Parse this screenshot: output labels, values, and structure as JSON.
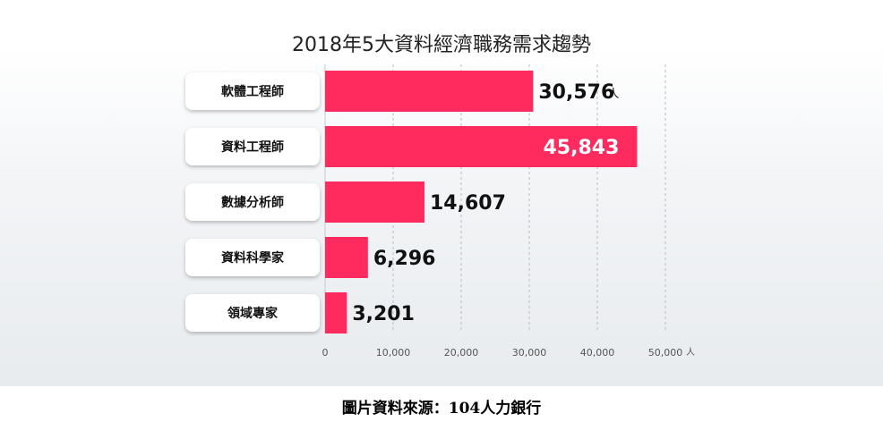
{
  "caption": "圖片資料來源：104人力銀行",
  "colors": {
    "bar": "#ff2a5e",
    "grid": "#b8bec6",
    "value_dark": "#111111",
    "value_light": "#ffffff",
    "label_box": "#ffffff"
  },
  "chart_data": {
    "type": "bar",
    "orientation": "horizontal",
    "title": "2018年5大資料經濟職務需求趨勢",
    "categories": [
      "軟體工程師",
      "資料工程師",
      "數據分析師",
      "資料科學家",
      "領域專家"
    ],
    "values": [
      30576,
      45843,
      14607,
      6296,
      3201
    ],
    "value_labels": [
      "30,576",
      "45,843",
      "14,607",
      "6,296",
      "3,201"
    ],
    "value_unit": "人",
    "xlim": [
      0,
      50000
    ],
    "x_ticks": [
      0,
      10000,
      20000,
      30000,
      40000,
      50000
    ],
    "x_tick_labels": [
      "0",
      "10,000",
      "20,000",
      "30,000",
      "40,000",
      "50,000"
    ],
    "x_tick_unit": "人",
    "grid": "vertical dashed",
    "legend": "none"
  }
}
